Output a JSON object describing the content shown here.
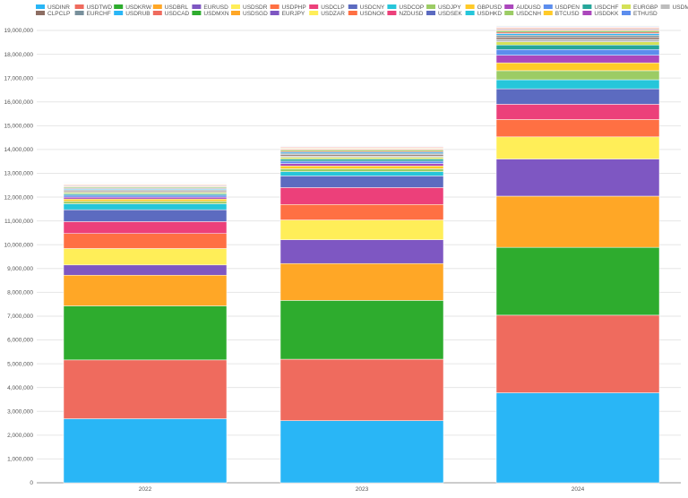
{
  "chart_data": {
    "type": "bar",
    "stacked": true,
    "categories": [
      "2022",
      "2023",
      "2024"
    ],
    "ylim": [
      0,
      19000000
    ],
    "yticks": [
      0,
      1000000,
      2000000,
      3000000,
      4000000,
      5000000,
      6000000,
      7000000,
      8000000,
      9000000,
      10000000,
      11000000,
      12000000,
      13000000,
      14000000,
      15000000,
      16000000,
      17000000,
      18000000,
      19000000
    ],
    "ytick_labels": [
      "0",
      "1,000,000",
      "2,000,000",
      "3,000,000",
      "4,000,000",
      "5,000,000",
      "6,000,000",
      "7,000,000",
      "8,000,000",
      "9,000,000",
      "10,000,000",
      "11,000,000",
      "12,000,000",
      "13,000,000",
      "14,000,000",
      "15,000,000",
      "16,000,000",
      "17,000,000",
      "18,000,000",
      "19,000,000"
    ],
    "grid": true,
    "legend_position": "top",
    "series": [
      {
        "name": "USDINR",
        "color": "#29b6f6",
        "values": [
          2690000,
          2610000,
          3780000
        ]
      },
      {
        "name": "USDTWD",
        "color": "#ef6b5e",
        "values": [
          2470000,
          2580000,
          3260000
        ]
      },
      {
        "name": "USDKRW",
        "color": "#2eac2e",
        "values": [
          2270000,
          2470000,
          2850000
        ]
      },
      {
        "name": "USDBRL",
        "color": "#ffa726",
        "values": [
          1290000,
          1550000,
          2150000
        ]
      },
      {
        "name": "EURUSD",
        "color": "#7e57c2",
        "values": [
          430000,
          1000000,
          1560000
        ]
      },
      {
        "name": "USDSDR",
        "color": "#ffee58",
        "values": [
          690000,
          830000,
          930000
        ]
      },
      {
        "name": "USDPHP",
        "color": "#ff7043",
        "values": [
          630000,
          650000,
          730000
        ]
      },
      {
        "name": "USDCLP",
        "color": "#ec407a",
        "values": [
          500000,
          710000,
          640000
        ]
      },
      {
        "name": "USDCNY",
        "color": "#5c6bc0",
        "values": [
          500000,
          490000,
          650000
        ]
      },
      {
        "name": "USDCOP",
        "color": "#26c6da",
        "values": [
          250000,
          180000,
          380000
        ]
      },
      {
        "name": "USDJPY",
        "color": "#9ccc65",
        "values": [
          100000,
          120000,
          380000
        ]
      },
      {
        "name": "GBPUSD",
        "color": "#ffca28",
        "values": [
          100000,
          120000,
          330000
        ]
      },
      {
        "name": "AUDUSD",
        "color": "#ab47bc",
        "values": [
          80000,
          100000,
          320000
        ]
      },
      {
        "name": "USDPEN",
        "color": "#5c8ded",
        "values": [
          80000,
          100000,
          240000
        ]
      },
      {
        "name": "USDCHF",
        "color": "#26a69a",
        "values": [
          60000,
          90000,
          190000
        ]
      },
      {
        "name": "EURGBP",
        "color": "#d4e157",
        "values": [
          50000,
          70000,
          130000
        ]
      },
      {
        "name": "USDMYR",
        "color": "#bdbdbd",
        "values": [
          50000,
          60000,
          110000
        ]
      },
      {
        "name": "CLPCLP",
        "color": "#8d6e63",
        "values": [
          40000,
          60000,
          90000
        ]
      },
      {
        "name": "EURCHF",
        "color": "#78909c",
        "values": [
          40000,
          50000,
          80000
        ]
      },
      {
        "name": "USDRUB",
        "color": "#29b6f6",
        "values": [
          40000,
          50000,
          70000
        ]
      },
      {
        "name": "USDCAD",
        "color": "#ef6b5e",
        "values": [
          35000,
          40000,
          60000
        ]
      },
      {
        "name": "USDMXN",
        "color": "#2eac2e",
        "values": [
          30000,
          40000,
          50000
        ]
      },
      {
        "name": "USDSGD",
        "color": "#ffa726",
        "values": [
          30000,
          35000,
          40000
        ]
      },
      {
        "name": "EURJPY",
        "color": "#7e57c2",
        "values": [
          30000,
          30000,
          40000
        ]
      },
      {
        "name": "USDZAR",
        "color": "#ffee58",
        "values": [
          25000,
          30000,
          30000
        ]
      },
      {
        "name": "USDNOK",
        "color": "#ff7043",
        "values": [
          25000,
          25000,
          30000
        ]
      },
      {
        "name": "NZDUSD",
        "color": "#ec407a",
        "values": [
          20000,
          25000,
          25000
        ]
      },
      {
        "name": "USDSEK",
        "color": "#5c6bc0",
        "values": [
          20000,
          20000,
          25000
        ]
      },
      {
        "name": "USDHKD",
        "color": "#26c6da",
        "values": [
          20000,
          20000,
          20000
        ]
      },
      {
        "name": "USDCNH",
        "color": "#9ccc65",
        "values": [
          15000,
          20000,
          20000
        ]
      },
      {
        "name": "BTCUSD",
        "color": "#ffca28",
        "values": [
          15000,
          15000,
          20000
        ]
      },
      {
        "name": "USDDKK",
        "color": "#ab47bc",
        "values": [
          15000,
          15000,
          15000
        ]
      },
      {
        "name": "ETHUSD",
        "color": "#5c8ded",
        "values": [
          10000,
          15000,
          15000
        ]
      }
    ]
  }
}
